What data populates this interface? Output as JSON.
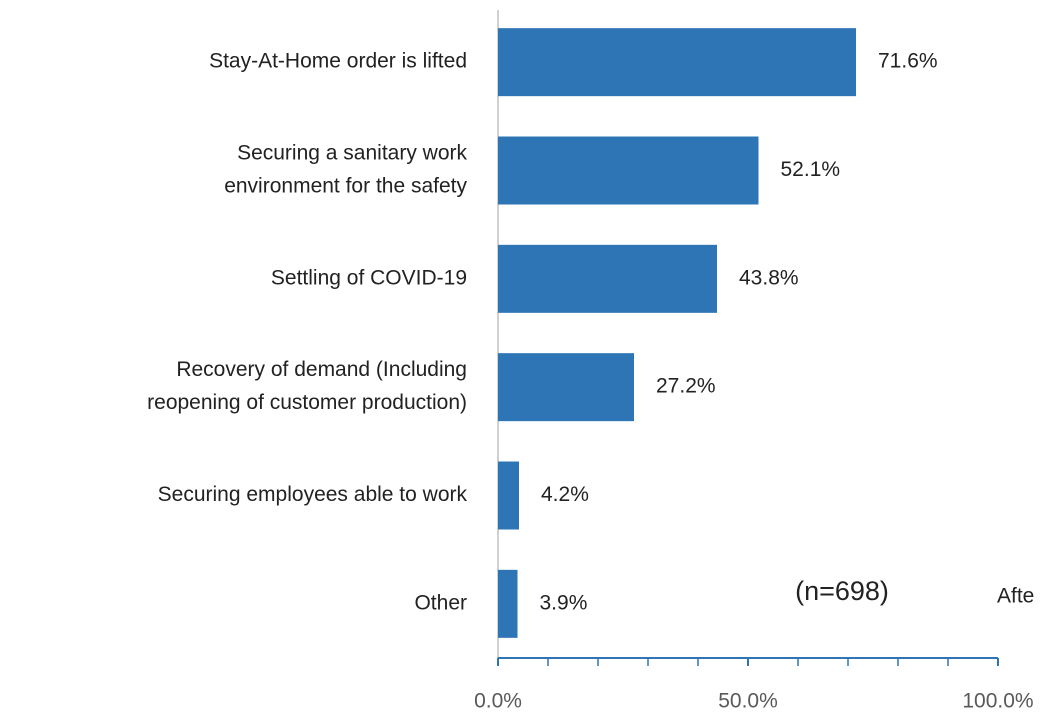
{
  "chart_data": {
    "type": "bar",
    "orientation": "horizontal",
    "categories": [
      [
        "Stay-At-Home order is lifted"
      ],
      [
        "Securing a sanitary work",
        "environment for the safety"
      ],
      [
        "Settling of COVID-19"
      ],
      [
        "Recovery of demand (Including",
        "reopening of customer production)"
      ],
      [
        "Securing employees able to work"
      ],
      [
        "Other"
      ]
    ],
    "values": [
      71.6,
      52.1,
      43.8,
      27.2,
      4.2,
      3.9
    ],
    "value_labels": [
      "71.6%",
      "52.1%",
      "43.8%",
      "27.2%",
      "4.2%",
      "3.9%"
    ],
    "color": "#2e75b6",
    "xlim": [
      0,
      100
    ],
    "xticks": [
      {
        "value": 0,
        "label": "0.0%"
      },
      {
        "value": 50,
        "label": "50.0%"
      },
      {
        "value": 100,
        "label": "100.0%"
      }
    ],
    "xminor_ticks": [
      10,
      20,
      30,
      40,
      60,
      70,
      80,
      90
    ],
    "annotations": [
      "(n=698)",
      "Afte"
    ]
  }
}
